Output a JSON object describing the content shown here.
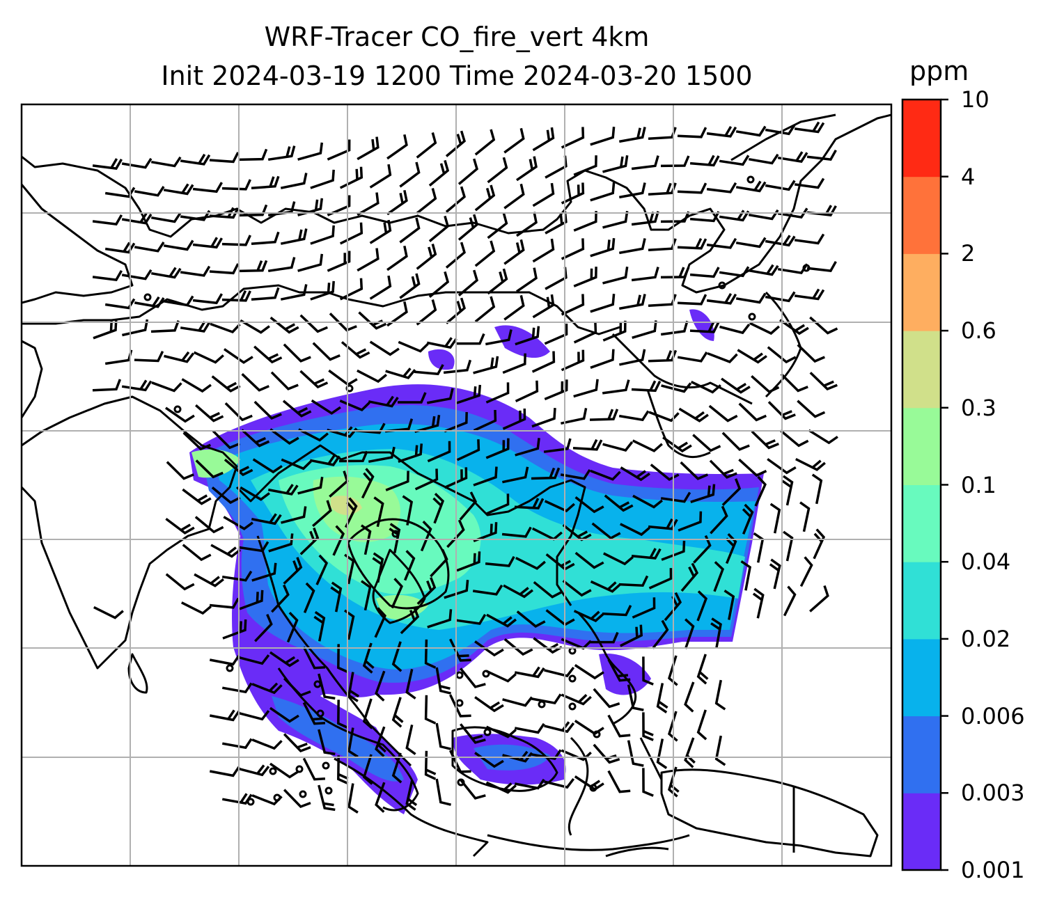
{
  "title": {
    "line1": "WRF-Tracer CO_fire_vert 4km",
    "line2": "Init 2024-03-19 1200 Time 2024-03-20 1500"
  },
  "colorbar": {
    "unit": "ppm",
    "levels": [
      "0.001",
      "0.003",
      "0.006",
      "0.02",
      "0.04",
      "0.1",
      "0.3",
      "0.6",
      "2",
      "4",
      "10"
    ],
    "colors": [
      "#6a2cf7",
      "#3070f0",
      "#08b2ec",
      "#30e0d6",
      "#68fabe",
      "#98fa98",
      "#d0e08a",
      "#feae60",
      "#ff723a",
      "#ff2a14"
    ]
  },
  "map": {
    "gridlines": true,
    "coastline_color": "#000000",
    "wind_barbs": true
  }
}
